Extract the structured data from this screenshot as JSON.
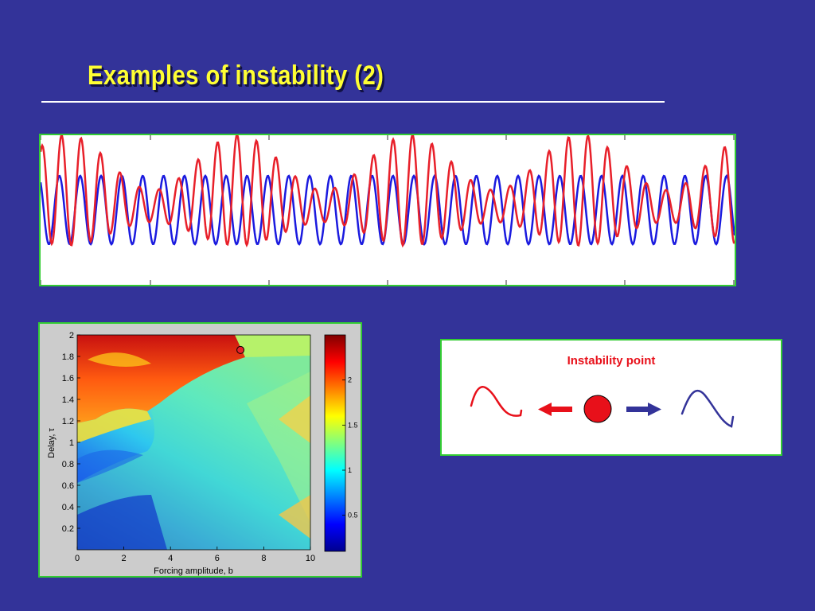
{
  "slide": {
    "title": "Examples of instability (2)"
  },
  "time_series": {
    "series": [
      {
        "color": "#e8202a",
        "shape": "modulated sinusoid"
      },
      {
        "color": "#1a1adf",
        "shape": "regular sinusoid"
      }
    ]
  },
  "stability_map": {
    "xlabel": "Forcing amplitude, b",
    "ylabel": "Delay, τ",
    "x_ticks": [
      "0",
      "2",
      "4",
      "6",
      "8",
      "10"
    ],
    "y_ticks": [
      "0.2",
      "0.4",
      "0.6",
      "0.8",
      "1",
      "1.2",
      "1.4",
      "1.6",
      "1.8",
      "2"
    ],
    "colorbar_ticks": [
      "0.5",
      "1",
      "1.5",
      "2"
    ],
    "colormap": "jet",
    "marker": {
      "b": 7.0,
      "tau": 1.86,
      "color": "#e8202a"
    }
  },
  "legend_box": {
    "title": "Instability point",
    "left_wave_color": "#e8101a",
    "right_wave_color": "#333399",
    "dot_color": "#e8101a",
    "left_arrow_color": "#e8101a",
    "right_arrow_color": "#333399"
  }
}
